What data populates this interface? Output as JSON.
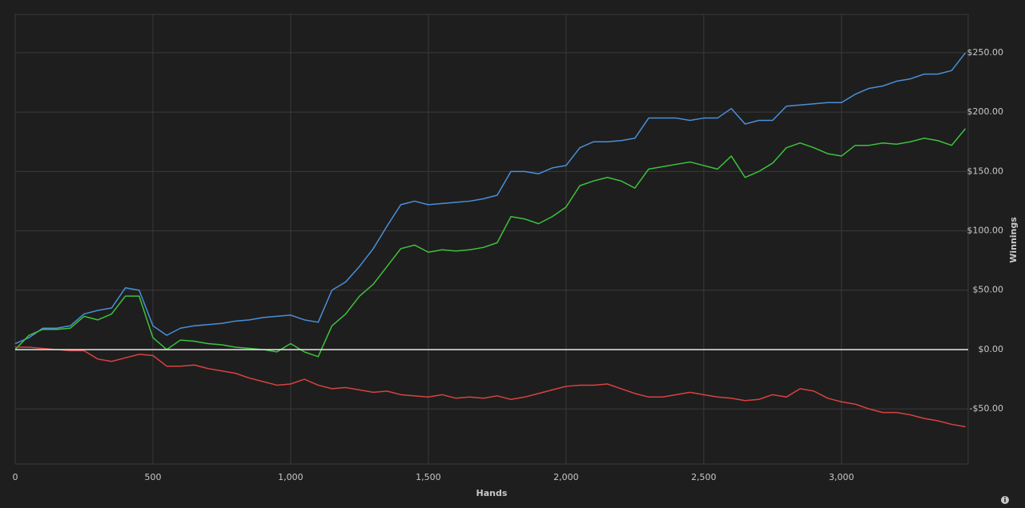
{
  "chart_data": {
    "type": "line",
    "x_label": "Hands",
    "y_label": "Winnings",
    "x": [
      0,
      50,
      100,
      150,
      200,
      250,
      300,
      350,
      400,
      450,
      500,
      550,
      600,
      650,
      700,
      750,
      800,
      850,
      900,
      950,
      1000,
      1050,
      1100,
      1150,
      1200,
      1250,
      1300,
      1350,
      1400,
      1450,
      1500,
      1550,
      1600,
      1650,
      1700,
      1750,
      1800,
      1850,
      1900,
      1950,
      2000,
      2050,
      2100,
      2150,
      2200,
      2250,
      2300,
      2350,
      2400,
      2450,
      2500,
      2550,
      2600,
      2650,
      2700,
      2750,
      2800,
      2850,
      2900,
      2950,
      3000,
      3050,
      3100,
      3150,
      3200,
      3250,
      3300,
      3350,
      3400,
      3450
    ],
    "series": [
      {
        "color": "#4a8fd8",
        "values": [
          5,
          10,
          18,
          18,
          20,
          30,
          33,
          35,
          52,
          50,
          20,
          12,
          18,
          20,
          21,
          22,
          24,
          25,
          27,
          28,
          29,
          25,
          23,
          50,
          57,
          70,
          85,
          104,
          122,
          125,
          122,
          123,
          124,
          125,
          127,
          130,
          150,
          150,
          148,
          153,
          155,
          170,
          175,
          175,
          176,
          178,
          195,
          195,
          195,
          193,
          195,
          195,
          203,
          190,
          193,
          193,
          205,
          206,
          207,
          208,
          208,
          215,
          220,
          222,
          226,
          228,
          232,
          232,
          235,
          250
        ]
      },
      {
        "color": "#3dc23d",
        "values": [
          0,
          12,
          17,
          17,
          18,
          28,
          25,
          30,
          45,
          45,
          10,
          0,
          8,
          7,
          5,
          4,
          2,
          1,
          0,
          -2,
          5,
          -2,
          -6,
          20,
          30,
          45,
          55,
          70,
          85,
          88,
          82,
          84,
          83,
          84,
          86,
          90,
          112,
          110,
          106,
          112,
          120,
          138,
          142,
          145,
          142,
          136,
          152,
          154,
          156,
          158,
          155,
          152,
          163,
          145,
          150,
          157,
          170,
          174,
          170,
          165,
          163,
          172,
          172,
          174,
          173,
          175,
          178,
          176,
          172,
          186
        ]
      },
      {
        "color": "#d9423f",
        "values": [
          2,
          2,
          1,
          0,
          -1,
          -1,
          -8,
          -10,
          -7,
          -4,
          -5,
          -14,
          -14,
          -13,
          -16,
          -18,
          -20,
          -24,
          -27,
          -30,
          -29,
          -25,
          -30,
          -33,
          -32,
          -34,
          -36,
          -35,
          -38,
          -39,
          -40,
          -38,
          -41,
          -40,
          -41,
          -39,
          -42,
          -40,
          -37,
          -34,
          -31,
          -30,
          -30,
          -29,
          -33,
          -37,
          -40,
          -40,
          -38,
          -36,
          -38,
          -40,
          -41,
          -43,
          -42,
          -38,
          -40,
          -33,
          -35,
          -41,
          -44,
          -46,
          -50,
          -53,
          -53,
          -55,
          -58,
          -60,
          -63,
          -65
        ]
      }
    ],
    "xlim": [
      0,
      3460
    ],
    "ylim": [
      -96.4,
      282.3
    ],
    "xticks": [
      0,
      500,
      {
        "value": 1000,
        "label": "1,000"
      },
      {
        "value": 1500,
        "label": "1,500"
      },
      {
        "value": 2000,
        "label": "2,000"
      },
      {
        "value": 2500,
        "label": "2,500"
      },
      {
        "value": 3000,
        "label": "3,000"
      }
    ],
    "yticks": [
      {
        "value": -50,
        "label": "-$50.00"
      },
      {
        "value": 0,
        "label": "$0.00"
      },
      {
        "value": 50,
        "label": "$50.00"
      },
      {
        "value": 100,
        "label": "$100.00"
      },
      {
        "value": 150,
        "label": "$150.00"
      },
      {
        "value": 200,
        "label": "$200.00"
      },
      {
        "value": 250,
        "label": "$250.00"
      }
    ],
    "grid": true,
    "zero_line_color": "#e8e8e8"
  }
}
